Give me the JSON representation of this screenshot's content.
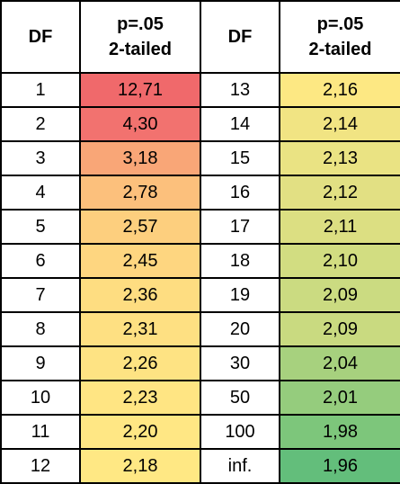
{
  "table": {
    "header": [
      "DF",
      "p=.05\n2-tailed",
      "DF",
      "p=.05\n2-tailed"
    ],
    "rows": [
      [
        "1",
        "12,71",
        "13",
        "2,16"
      ],
      [
        "2",
        "4,30",
        "14",
        "2,14"
      ],
      [
        "3",
        "3,18",
        "15",
        "2,13"
      ],
      [
        "4",
        "2,78",
        "16",
        "2,12"
      ],
      [
        "5",
        "2,57",
        "17",
        "2,11"
      ],
      [
        "6",
        "2,45",
        "18",
        "2,10"
      ],
      [
        "7",
        "2,36",
        "19",
        "2,09"
      ],
      [
        "8",
        "2,31",
        "20",
        "2,09"
      ],
      [
        "9",
        "2,26",
        "30",
        "2,04"
      ],
      [
        "10",
        "2,23",
        "50",
        "2,01"
      ],
      [
        "11",
        "2,20",
        "100",
        "1,98"
      ],
      [
        "12",
        "2,18",
        "inf.",
        "1,96"
      ]
    ],
    "shading": [
      [
        "#f0696b",
        "#fde883"
      ],
      [
        "#f2726f",
        "#f1e483"
      ],
      [
        "#f9a677",
        "#eae383"
      ],
      [
        "#fcc07c",
        "#e2e083"
      ],
      [
        "#fdcf7e",
        "#dcdf82"
      ],
      [
        "#fed680",
        "#d2dd81"
      ],
      [
        "#fedd81",
        "#cbdb81"
      ],
      [
        "#fee082",
        "#c9da80"
      ],
      [
        "#fee383",
        "#a7d17e"
      ],
      [
        "#ffe583",
        "#95cc7d"
      ],
      [
        "#ffe784",
        "#7dc67b"
      ],
      [
        "#ffe884",
        "#63be7b"
      ]
    ]
  }
}
